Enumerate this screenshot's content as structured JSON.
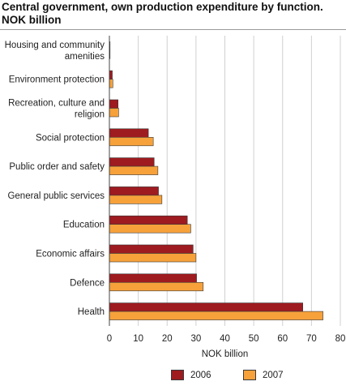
{
  "title": "Central government, own production expenditure by function. NOK billion",
  "colors": {
    "s2006": "#9e1b20",
    "s2007": "#f7a13b",
    "grid": "#d0d0d0",
    "axis": "#444444"
  },
  "chart_data": {
    "type": "bar",
    "orientation": "horizontal",
    "title": "Central government, own production expenditure by function. NOK billion",
    "xlabel": "NOK billion",
    "ylabel": "",
    "xlim": [
      0,
      80
    ],
    "xticks": [
      0,
      10,
      20,
      30,
      40,
      50,
      60,
      70,
      80
    ],
    "grid": true,
    "legend_position": "bottom",
    "categories": [
      "Housing and community amenities",
      "Environment protection",
      "Recreation, culture and religion",
      "Social protection",
      "Public order and safety",
      "General public services",
      "Education",
      "Economic affairs",
      "Defence",
      "Health"
    ],
    "category_lines": [
      [
        "Housing and community",
        "amenities"
      ],
      [
        "Environment protection"
      ],
      [
        "Recreation, culture and",
        "religion"
      ],
      [
        "Social protection"
      ],
      [
        "Public order and safety"
      ],
      [
        "General public services"
      ],
      [
        "Education"
      ],
      [
        "Economic affairs"
      ],
      [
        "Defence"
      ],
      [
        "Health"
      ]
    ],
    "series": [
      {
        "name": "2006",
        "values": [
          0.2,
          1.0,
          3.0,
          13.5,
          15.5,
          17.0,
          27.0,
          29.0,
          30.2,
          67.0
        ]
      },
      {
        "name": "2007",
        "values": [
          0.2,
          1.2,
          3.2,
          15.2,
          16.8,
          18.2,
          28.2,
          30.0,
          32.5,
          74.0
        ]
      }
    ]
  }
}
